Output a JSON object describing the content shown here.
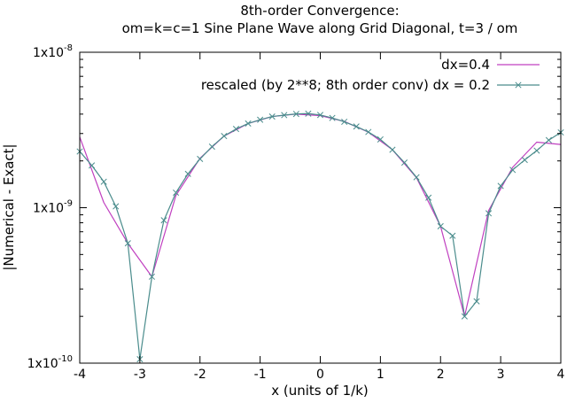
{
  "chart_data": {
    "type": "line",
    "title": "8th-order Convergence:",
    "subtitle": "om=k=c=1 Sine Plane Wave along Grid Diagonal, t=3 / om",
    "xlabel": "x (units of 1/k)",
    "ylabel": "|Numerical - Exact|",
    "xlim": [
      -4,
      4
    ],
    "ylim": [
      1e-10,
      1e-08
    ],
    "yscale": "log",
    "grid": false,
    "legend_position": "top-right",
    "x_ticks": [
      {
        "value": -4,
        "label": "-4"
      },
      {
        "value": -3,
        "label": "-3"
      },
      {
        "value": -2,
        "label": "-2"
      },
      {
        "value": -1,
        "label": "-1"
      },
      {
        "value": 0,
        "label": "0"
      },
      {
        "value": 1,
        "label": "1"
      },
      {
        "value": 2,
        "label": "2"
      },
      {
        "value": 3,
        "label": "3"
      },
      {
        "value": 4,
        "label": "4"
      }
    ],
    "y_ticks": [
      {
        "value": 1e-08,
        "base": "1x10",
        "exp": "-8"
      },
      {
        "value": 1e-09,
        "base": "1x10",
        "exp": "-9"
      },
      {
        "value": 1e-10,
        "base": "1x10",
        "exp": "-10"
      }
    ],
    "series": [
      {
        "name": "dx=0.4",
        "color": "#c040c0",
        "marker": "none",
        "x": [
          -4.0,
          -3.6,
          -3.2,
          -2.8,
          -2.4,
          -2.0,
          -1.6,
          -1.2,
          -0.8,
          -0.4,
          0.0,
          0.4,
          0.8,
          1.2,
          1.6,
          2.0,
          2.4,
          2.8,
          3.2,
          3.6,
          4.0
        ],
        "y": [
          2.85e-09,
          1.08e-09,
          5.9e-10,
          3.6e-10,
          1.2e-09,
          2.08e-09,
          2.89e-09,
          3.48e-09,
          3.86e-09,
          4e-09,
          3.91e-09,
          3.59e-09,
          3.06e-09,
          2.36e-09,
          1.56e-09,
          7.6e-10,
          2e-10,
          9.6e-10,
          1.82e-09,
          2.64e-09,
          2.55e-09
        ]
      },
      {
        "name": "rescaled (by 2**8; 8th order conv) dx = 0.2",
        "color": "#4a8c8c",
        "marker": "x",
        "x": [
          -4.0,
          -3.8,
          -3.6,
          -3.4,
          -3.2,
          -3.0,
          -2.8,
          -2.6,
          -2.4,
          -2.2,
          -2.0,
          -1.8,
          -1.6,
          -1.4,
          -1.2,
          -1.0,
          -0.8,
          -0.6,
          -0.4,
          -0.2,
          0.0,
          0.2,
          0.4,
          0.6,
          0.8,
          1.0,
          1.2,
          1.4,
          1.6,
          1.8,
          2.0,
          2.2,
          2.4,
          2.6,
          2.8,
          3.0,
          3.2,
          3.4,
          3.6,
          3.8,
          4.0
        ],
        "y": [
          2.3e-09,
          1.87e-09,
          1.47e-09,
          1.02e-09,
          5.9e-10,
          1.06e-10,
          3.6e-10,
          8.3e-10,
          1.25e-09,
          1.65e-09,
          2.06e-09,
          2.47e-09,
          2.89e-09,
          3.21e-09,
          3.48e-09,
          3.68e-09,
          3.86e-09,
          3.94e-09,
          4.01e-09,
          4.03e-09,
          3.95e-09,
          3.78e-09,
          3.57e-09,
          3.33e-09,
          3.07e-09,
          2.75e-09,
          2.36e-09,
          1.95e-09,
          1.57e-09,
          1.16e-09,
          7.6e-10,
          6.6e-10,
          2e-10,
          2.5e-10,
          9.2e-10,
          1.38e-09,
          1.75e-09,
          2.03e-09,
          2.33e-09,
          2.72e-09,
          3.05e-09
        ]
      }
    ]
  }
}
